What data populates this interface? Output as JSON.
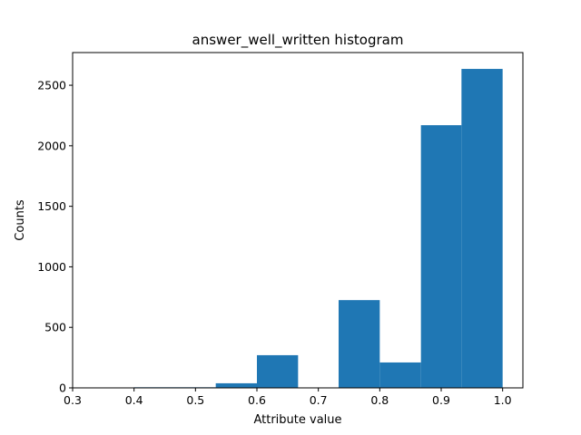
{
  "chart_data": {
    "type": "bar",
    "title": "answer_well_written histogram",
    "xlabel": "Attribute value",
    "ylabel": "Counts",
    "bar_color": "#1f77b4",
    "xlim": [
      0.3,
      1.033
    ],
    "ylim": [
      0,
      2770
    ],
    "x_ticks": [
      "0.3",
      "0.4",
      "0.5",
      "0.6",
      "0.7",
      "0.8",
      "0.9",
      "1.0"
    ],
    "y_ticks": [
      "0",
      "500",
      "1000",
      "1500",
      "2000",
      "2500"
    ],
    "bins": [
      {
        "start": 0.333,
        "end": 0.4,
        "count": 0
      },
      {
        "start": 0.4,
        "end": 0.467,
        "count": 5
      },
      {
        "start": 0.467,
        "end": 0.533,
        "count": 5
      },
      {
        "start": 0.533,
        "end": 0.6,
        "count": 38
      },
      {
        "start": 0.6,
        "end": 0.667,
        "count": 270
      },
      {
        "start": 0.667,
        "end": 0.733,
        "count": 0
      },
      {
        "start": 0.733,
        "end": 0.8,
        "count": 725
      },
      {
        "start": 0.8,
        "end": 0.867,
        "count": 210
      },
      {
        "start": 0.867,
        "end": 0.933,
        "count": 2170
      },
      {
        "start": 0.933,
        "end": 1.0,
        "count": 2635
      }
    ],
    "grid": false,
    "legend": "none"
  }
}
